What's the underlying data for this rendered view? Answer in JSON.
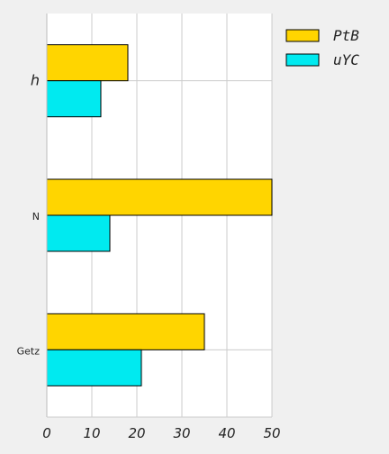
{
  "chart_data": {
    "type": "bar",
    "orientation": "horizontal",
    "categories": [
      "h",
      "N",
      "Getz"
    ],
    "series": [
      {
        "name": "PtB",
        "values": [
          18,
          50,
          35
        ],
        "color": "#ffd500"
      },
      {
        "name": "uYC",
        "values": [
          12,
          14,
          21
        ],
        "color": "#00eaf0"
      }
    ],
    "xlim": [
      0,
      50
    ],
    "xticks": [
      0,
      10,
      20,
      30,
      40,
      50
    ],
    "grid": true,
    "legend_position": "top-right",
    "title": "",
    "xlabel": "",
    "ylabel": ""
  }
}
